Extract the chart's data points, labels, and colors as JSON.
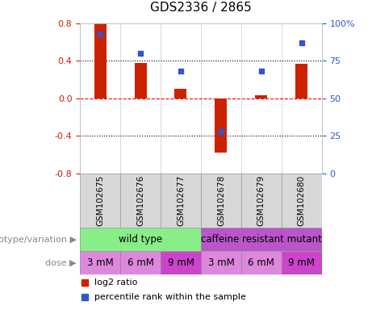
{
  "title": "GDS2336 / 2865",
  "samples": [
    "GSM102675",
    "GSM102676",
    "GSM102677",
    "GSM102678",
    "GSM102679",
    "GSM102680"
  ],
  "log2_ratio": [
    0.8,
    0.38,
    0.1,
    -0.58,
    0.03,
    0.37
  ],
  "percentile_rank": [
    93,
    80,
    68,
    28,
    68,
    87
  ],
  "ylim_left": [
    -0.8,
    0.8
  ],
  "ylim_right": [
    0,
    100
  ],
  "yticks_left": [
    -0.8,
    -0.4,
    0.0,
    0.4,
    0.8
  ],
  "yticks_right": [
    0,
    25,
    50,
    75,
    100
  ],
  "yticklabels_right": [
    "0",
    "25",
    "50",
    "75",
    "100%"
  ],
  "bar_color": "#cc2200",
  "dot_color": "#3355cc",
  "genotype_labels": [
    "wild type",
    "caffeine resistant mutant"
  ],
  "genotype_color_wt": "#88ee88",
  "genotype_color_cr": "#bb55cc",
  "dose_labels": [
    "3 mM",
    "6 mM",
    "9 mM",
    "3 mM",
    "6 mM",
    "9 mM"
  ],
  "dose_colors": [
    "#dd88dd",
    "#dd88dd",
    "#cc44cc",
    "#dd88dd",
    "#dd88dd",
    "#cc44cc"
  ],
  "legend_log2_color": "#cc2200",
  "legend_pct_color": "#3355cc",
  "background_color": "#ffffff",
  "label_genotype": "genotype/variation",
  "label_dose": "dose",
  "sample_bg_color": "#d8d8d8",
  "sample_border_color": "#999999"
}
